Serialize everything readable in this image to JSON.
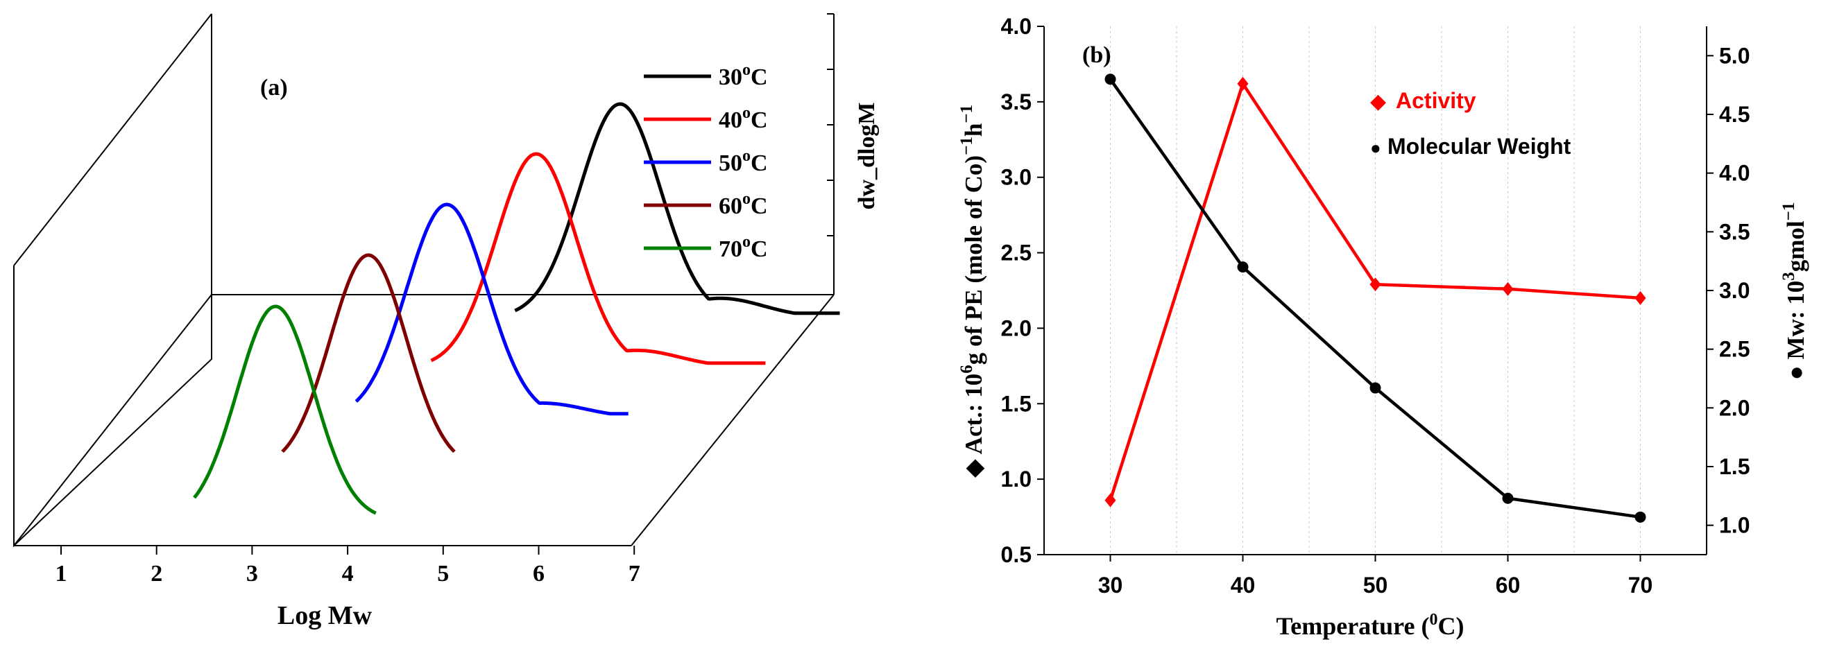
{
  "chart_data": [
    {
      "type": "line",
      "panel_label": "(a)",
      "projection": "3d-waterfall",
      "xlabel": "Log Mw",
      "zlabel": "dw_dlogM",
      "xticks": [
        1,
        2,
        3,
        4,
        5,
        6,
        7
      ],
      "xlim": [
        0.5,
        7
      ],
      "series": [
        {
          "name": "30",
          "unit": "C",
          "deg": "o",
          "color": "#000000",
          "peak_logM": 5.0,
          "peak_height": 1.0,
          "sigma": 0.42,
          "range": [
            3.9,
            7.3
          ],
          "shoulder": {
            "at": 6.05,
            "height": 0.09
          }
        },
        {
          "name": "40",
          "unit": "C",
          "deg": "o",
          "color": "#ff0000",
          "peak_logM": 4.5,
          "peak_height": 1.0,
          "sigma": 0.42,
          "range": [
            3.4,
            6.9
          ],
          "shoulder": {
            "at": 5.55,
            "height": 0.08
          }
        },
        {
          "name": "50",
          "unit": "C",
          "deg": "o",
          "color": "#0000ff",
          "peak_logM": 4.0,
          "peak_height": 1.0,
          "sigma": 0.42,
          "range": [
            3.05,
            5.9
          ],
          "shoulder": {
            "at": 5.0,
            "height": 0.07
          }
        },
        {
          "name": "60",
          "unit": "C",
          "deg": "o",
          "color": "#800000",
          "peak_logM": 3.6,
          "peak_height": 1.0,
          "sigma": 0.4,
          "range": [
            2.7,
            4.5
          ],
          "shoulder": null
        },
        {
          "name": "70",
          "unit": "C",
          "deg": "o",
          "color": "#008000",
          "peak_logM": 3.1,
          "peak_height": 1.0,
          "sigma": 0.4,
          "range": [
            2.25,
            4.15
          ],
          "shoulder": null
        }
      ]
    },
    {
      "type": "line",
      "panel_label": "(b)",
      "x": [
        30,
        40,
        50,
        60,
        70
      ],
      "xlim": [
        25,
        75
      ],
      "xticks": [
        30,
        40,
        50,
        60,
        70
      ],
      "xlabel": "Temperature (",
      "xlabel_sup": "0",
      "xlabel_suffix": "C)",
      "ylim": [
        0.5,
        4.0
      ],
      "yticks": [
        "0.5",
        "1.0",
        "1.5",
        "2.0",
        "2.5",
        "3.0",
        "3.5",
        "4.0"
      ],
      "y2lim": [
        0.75,
        5.25
      ],
      "y2ticks": [
        "1.0",
        "1.5",
        "2.0",
        "2.5",
        "3.0",
        "3.5",
        "4.0",
        "4.5",
        "5.0"
      ],
      "ylabel": {
        "p1": "◆ Act.: 10",
        "s1": "6",
        "p2": "g of PE (mole of Co)",
        "s2": "−1",
        "p3": "h",
        "s3": "−1"
      },
      "y2label": {
        "p1": "● Mw: 10",
        "s1": "3",
        "p2": "gmol",
        "s2": "−1"
      },
      "series": [
        {
          "name": "Activity",
          "axis": "left",
          "color": "#ff0000",
          "marker": "diamond",
          "marker_glyph": "◆",
          "values": [
            0.86,
            3.62,
            2.29,
            2.26,
            2.2
          ]
        },
        {
          "name": "Molecular Weight",
          "axis": "right",
          "color": "#000000",
          "marker": "circle",
          "marker_glyph": "●",
          "values": [
            4.8,
            3.2,
            2.17,
            1.23,
            1.07
          ]
        }
      ]
    }
  ]
}
